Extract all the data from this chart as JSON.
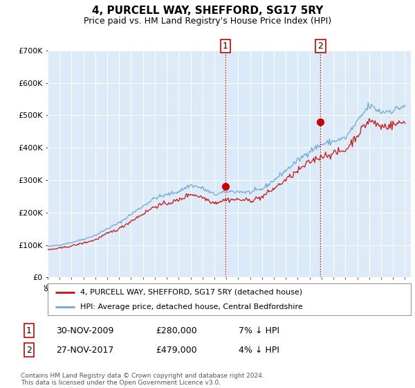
{
  "title": "4, PURCELL WAY, SHEFFORD, SG17 5RY",
  "subtitle": "Price paid vs. HM Land Registry's House Price Index (HPI)",
  "title_fontsize": 11,
  "subtitle_fontsize": 9,
  "background_color": "#ffffff",
  "plot_bg_color": "#ddeaf7",
  "shade_color": "#ccdff5",
  "grid_color": "#ffffff",
  "ylim": [
    0,
    700000
  ],
  "yticks": [
    0,
    100000,
    200000,
    300000,
    400000,
    500000,
    600000,
    700000
  ],
  "ytick_labels": [
    "£0",
    "£100K",
    "£200K",
    "£300K",
    "£400K",
    "£500K",
    "£600K",
    "£700K"
  ],
  "sale1_x": 2009.917,
  "sale1_y": 280000,
  "sale2_x": 2017.917,
  "sale2_y": 479000,
  "vline_color": "#cc0000",
  "sale_dot_color": "#cc0000",
  "legend_line1": "4, PURCELL WAY, SHEFFORD, SG17 5RY (detached house)",
  "legend_line2": "HPI: Average price, detached house, Central Bedfordshire",
  "line1_color": "#cc1111",
  "line2_color": "#6fa8d4",
  "table_row1": [
    "1",
    "30-NOV-2009",
    "£280,000",
    "7% ↓ HPI"
  ],
  "table_row2": [
    "2",
    "27-NOV-2017",
    "£479,000",
    "4% ↓ HPI"
  ],
  "footnote": "Contains HM Land Registry data © Crown copyright and database right 2024.\nThis data is licensed under the Open Government Licence v3.0.",
  "xmin": 1995.0,
  "xmax": 2025.5
}
